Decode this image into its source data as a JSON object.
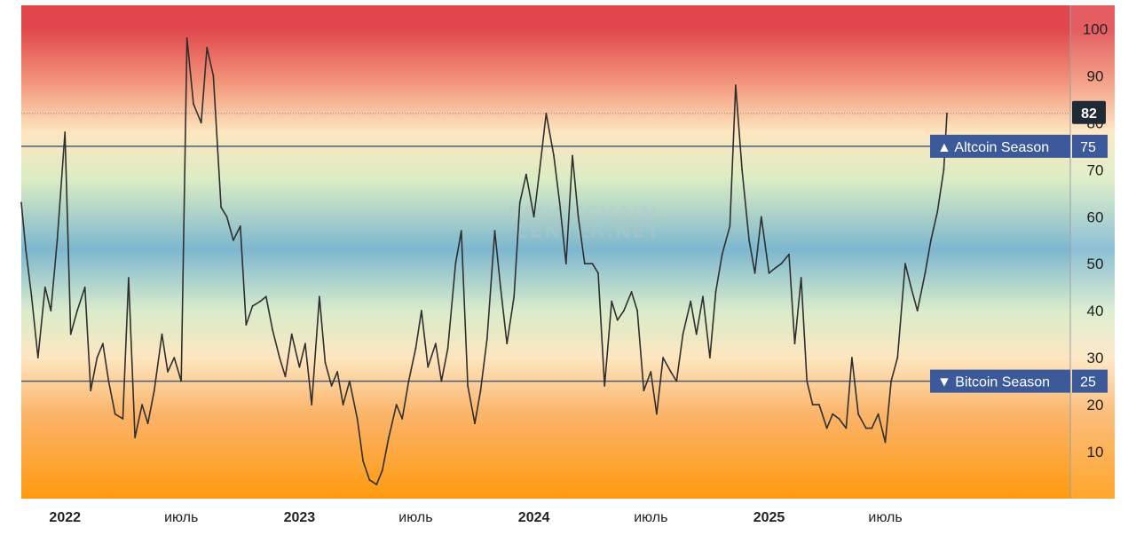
{
  "chart_data": {
    "type": "line",
    "ylim": [
      0,
      105
    ],
    "y_ticks": [
      10,
      20,
      30,
      40,
      50,
      60,
      70,
      80,
      90,
      100
    ],
    "x_ticks": [
      {
        "label": "2022",
        "kind": "year",
        "x": "2022-01-01"
      },
      {
        "label": "июль",
        "kind": "month",
        "x": "2022-07-01"
      },
      {
        "label": "2023",
        "kind": "year",
        "x": "2023-01-01"
      },
      {
        "label": "июль",
        "kind": "month",
        "x": "2023-07-01"
      },
      {
        "label": "2024",
        "kind": "year",
        "x": "2024-01-01"
      },
      {
        "label": "июль",
        "kind": "month",
        "x": "2024-07-01"
      },
      {
        "label": "2025",
        "kind": "year",
        "x": "2025-01-01"
      },
      {
        "label": "июль",
        "kind": "month",
        "x": "2025-07-01"
      }
    ],
    "x_range": [
      "2021-10-25",
      "2026-04-15"
    ],
    "thresholds": [
      {
        "label": "Altcoin Season",
        "value": 75,
        "marker": "▲"
      },
      {
        "label": "Bitcoin Season",
        "value": 25,
        "marker": "▼"
      }
    ],
    "current_value": 82,
    "watermark": [
      "BLOCKCHAIN",
      "CENTER.NET"
    ],
    "background_gradient": [
      {
        "value": 100,
        "color": "#e0474c"
      },
      {
        "value": 88,
        "color": "#f39a7d"
      },
      {
        "value": 78,
        "color": "#fde6c0"
      },
      {
        "value": 68,
        "color": "#dbedc3"
      },
      {
        "value": 53,
        "color": "#7db7cf"
      },
      {
        "value": 40,
        "color": "#d9eccb"
      },
      {
        "value": 30,
        "color": "#fde6c0"
      },
      {
        "value": 18,
        "color": "#fbb46a"
      },
      {
        "value": 0,
        "color": "#ff9a10"
      }
    ],
    "colors": {
      "line": "#2f2f2f",
      "threshold": "#4a5a7a",
      "label_box": "#3c5a9a",
      "current_box": "#1f2a36"
    },
    "series": [
      {
        "x": [
          "2021-10-25",
          "2021-11-01",
          "2021-11-10",
          "2021-11-20",
          "2021-12-01",
          "2021-12-10",
          "2021-12-20",
          "2022-01-01",
          "2022-01-10",
          "2022-01-20",
          "2022-02-01",
          "2022-02-10",
          "2022-02-20",
          "2022-03-01",
          "2022-03-10",
          "2022-03-20",
          "2022-04-01",
          "2022-04-10",
          "2022-04-20",
          "2022-05-01",
          "2022-05-10",
          "2022-05-20",
          "2022-06-01",
          "2022-06-10",
          "2022-06-20",
          "2022-07-01",
          "2022-07-10",
          "2022-07-20",
          "2022-08-01",
          "2022-08-10",
          "2022-08-20",
          "2022-09-01",
          "2022-09-10",
          "2022-09-20",
          "2022-10-01",
          "2022-10-10",
          "2022-10-20",
          "2022-11-01",
          "2022-11-10",
          "2022-11-20",
          "2022-12-01",
          "2022-12-10",
          "2022-12-20",
          "2023-01-01",
          "2023-01-10",
          "2023-01-20",
          "2023-02-01",
          "2023-02-10",
          "2023-02-20",
          "2023-03-01",
          "2023-03-10",
          "2023-03-20",
          "2023-04-01",
          "2023-04-10",
          "2023-04-20",
          "2023-05-01",
          "2023-05-10",
          "2023-05-20",
          "2023-06-01",
          "2023-06-10",
          "2023-06-20",
          "2023-07-01",
          "2023-07-10",
          "2023-07-20",
          "2023-08-01",
          "2023-08-10",
          "2023-08-20",
          "2023-09-01",
          "2023-09-10",
          "2023-09-20",
          "2023-10-01",
          "2023-10-10",
          "2023-10-20",
          "2023-11-01",
          "2023-11-10",
          "2023-11-20",
          "2023-12-01",
          "2023-12-10",
          "2023-12-20",
          "2024-01-01",
          "2024-01-10",
          "2024-01-20",
          "2024-02-01",
          "2024-02-10",
          "2024-02-20",
          "2024-03-01",
          "2024-03-10",
          "2024-03-20",
          "2024-04-01",
          "2024-04-10",
          "2024-04-20",
          "2024-05-01",
          "2024-05-10",
          "2024-05-20",
          "2024-06-01",
          "2024-06-10",
          "2024-06-20",
          "2024-07-01",
          "2024-07-10",
          "2024-07-20",
          "2024-08-01",
          "2024-08-10",
          "2024-08-20",
          "2024-09-01",
          "2024-09-10",
          "2024-09-20",
          "2024-10-01",
          "2024-10-10",
          "2024-10-20",
          "2024-11-01",
          "2024-11-10",
          "2024-11-20",
          "2024-12-01",
          "2024-12-10",
          "2024-12-20",
          "2025-01-01",
          "2025-01-10",
          "2025-01-20",
          "2025-02-01",
          "2025-02-10",
          "2025-02-20",
          "2025-03-01",
          "2025-03-10",
          "2025-03-20",
          "2025-04-01",
          "2025-04-10",
          "2025-04-20",
          "2025-05-01",
          "2025-05-10",
          "2025-05-20",
          "2025-06-01",
          "2025-06-10",
          "2025-06-20",
          "2025-07-01",
          "2025-07-10",
          "2025-07-20",
          "2025-08-01",
          "2025-08-10",
          "2025-08-20",
          "2025-09-01",
          "2025-09-10",
          "2025-09-20",
          "2025-09-30",
          "2025-10-05"
        ],
        "y": [
          63,
          53,
          43,
          30,
          45,
          40,
          55,
          78,
          35,
          40,
          45,
          23,
          30,
          33,
          25,
          18,
          17,
          47,
          13,
          20,
          16,
          23,
          35,
          27,
          30,
          25,
          98,
          84,
          80,
          96,
          90,
          62,
          60,
          55,
          58,
          37,
          41,
          42,
          43,
          36,
          30,
          26,
          35,
          28,
          33,
          20,
          43,
          29,
          24,
          27,
          20,
          25,
          17,
          8,
          4,
          3,
          6,
          13,
          20,
          17,
          25,
          32,
          40,
          28,
          33,
          25,
          32,
          50,
          57,
          24,
          16,
          23,
          34,
          57,
          45,
          33,
          43,
          63,
          69,
          60,
          70,
          82,
          73,
          63,
          50,
          73,
          60,
          50,
          50,
          48,
          24,
          42,
          38,
          40,
          44,
          40,
          23,
          27,
          18,
          30,
          27,
          25,
          35,
          42,
          35,
          43,
          30,
          44,
          52,
          58,
          88,
          70,
          55,
          48,
          60,
          48,
          49,
          50,
          52,
          33,
          47,
          25,
          20,
          20,
          15,
          18,
          17,
          15,
          30,
          18,
          15,
          15,
          18,
          12,
          25,
          30,
          50,
          45,
          40,
          48,
          55,
          61,
          70,
          82
        ]
      }
    ]
  }
}
